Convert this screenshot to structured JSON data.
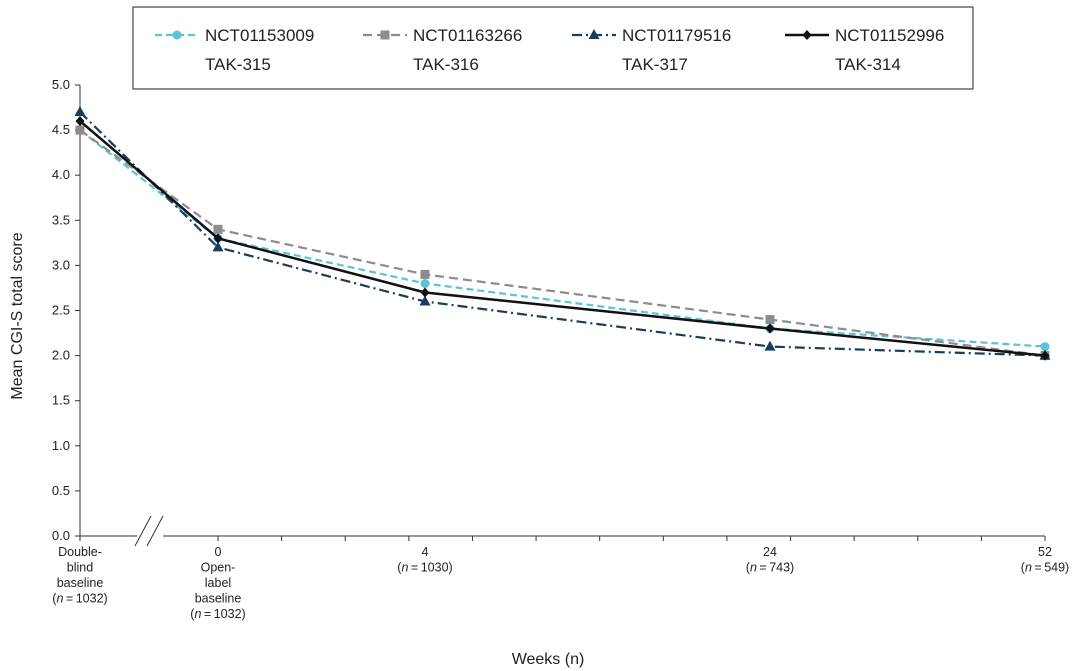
{
  "chart_data": {
    "type": "line",
    "ylabel": "Mean CGI-S total score",
    "xlabel": "Weeks (n)",
    "ylim": [
      0,
      5
    ],
    "y_ticks": [
      "0.0",
      "0.5",
      "1.0",
      "1.5",
      "2.0",
      "2.5",
      "3.0",
      "3.5",
      "4.0",
      "4.5",
      "5.0"
    ],
    "grid": false,
    "legend_position": "top-center",
    "x": [
      "baseline",
      0,
      4,
      24,
      52
    ],
    "categories": [
      {
        "lines": [
          "Double-",
          "blind",
          "baseline",
          "(n = 1032)"
        ]
      },
      {
        "lines": [
          "0",
          "Open-",
          "label",
          "baseline",
          "(n = 1032)"
        ]
      },
      {
        "lines": [
          "4",
          "(n = 1030)"
        ]
      },
      {
        "lines": [
          "24",
          "(n = 743)"
        ]
      },
      {
        "lines": [
          "52",
          "(n = 549)"
        ]
      }
    ],
    "series": [
      {
        "name": "NCT01153009",
        "name2": "TAK-315",
        "color": "#5bc4d4",
        "dash": "7,4",
        "marker": "circle",
        "values": [
          4.5,
          3.3,
          2.8,
          2.3,
          2.1
        ]
      },
      {
        "name": "NCT01163266",
        "name2": "TAK-316",
        "color": "#8c8c8c",
        "dash": "9,5",
        "marker": "square",
        "values": [
          4.5,
          3.4,
          2.9,
          2.4,
          2.0
        ]
      },
      {
        "name": "NCT01179516",
        "name2": "TAK-317",
        "color": "#1a3d5c",
        "dash": "10,4,2,4",
        "marker": "triangle",
        "values": [
          4.7,
          3.2,
          2.6,
          2.1,
          2.0
        ]
      },
      {
        "name": "NCT01152996",
        "name2": "TAK-314",
        "color": "#111111",
        "dash": "",
        "marker": "diamond",
        "values": [
          4.6,
          3.3,
          2.7,
          2.3,
          2.0
        ]
      }
    ]
  }
}
